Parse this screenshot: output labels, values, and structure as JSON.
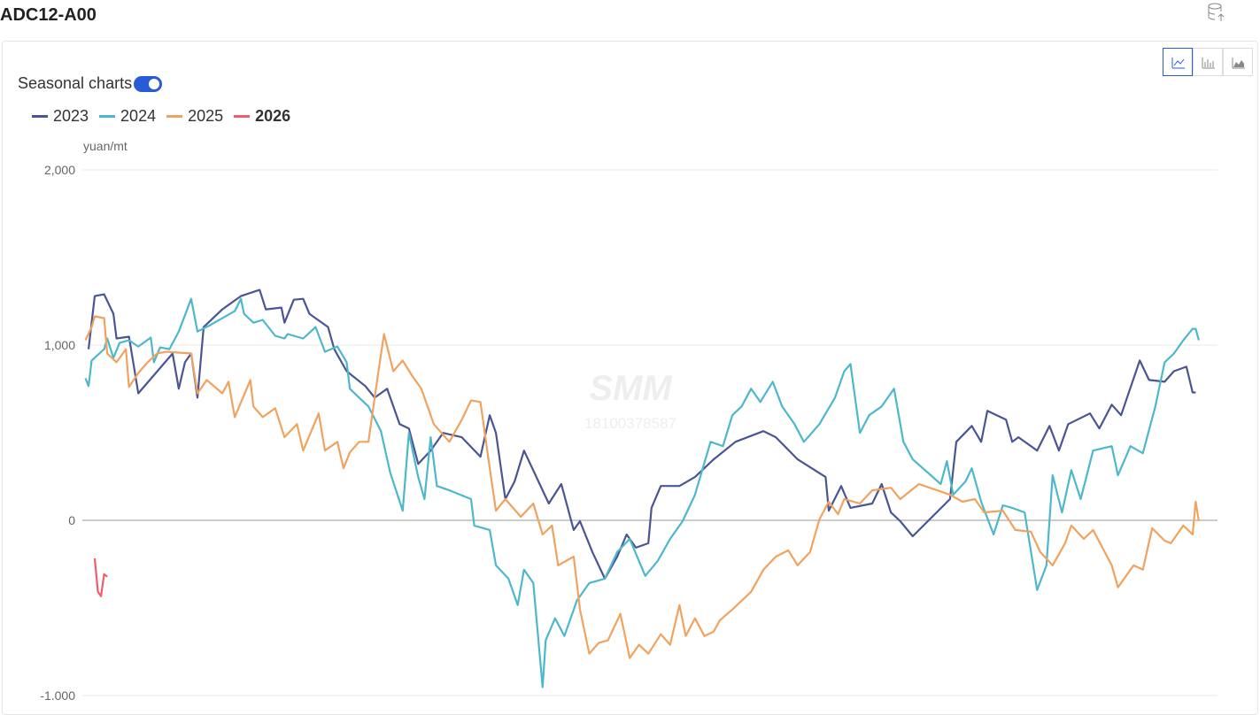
{
  "header": {
    "title": "ADC12-A00"
  },
  "controls": {
    "seasonal_toggle": "Seasonal charts"
  },
  "watermark": {
    "brand": "SMM",
    "phone": "18100378587"
  },
  "chart_data": {
    "type": "line",
    "y_axis_label": "yuan/mt",
    "xlim": [
      1,
      366
    ],
    "ylim": [
      -1000,
      2000
    ],
    "yticks": [
      {
        "value": -1000,
        "label": "-1,000"
      },
      0,
      {
        "value": 1000,
        "label": "1,000"
      },
      {
        "value": 2000,
        "label": "2,000"
      }
    ],
    "grid": true,
    "legend": "top-left",
    "series": [
      {
        "name": "2023",
        "color": "#4b5594",
        "x": [
          3,
          5,
          8,
          11,
          12,
          16,
          19,
          30,
          32,
          34,
          36,
          38,
          40,
          46,
          52,
          58,
          60,
          65,
          66,
          69,
          72,
          74,
          80,
          82,
          86,
          92,
          95,
          99,
          103,
          106,
          109,
          113,
          117,
          123,
          129,
          132,
          134,
          137,
          140,
          143,
          147,
          151,
          155,
          159,
          161,
          165,
          169,
          173,
          176,
          179,
          183,
          184,
          187,
          193,
          198,
          204,
          211,
          220,
          224,
          231,
          240,
          241,
          245,
          248,
          255,
          258,
          261,
          264,
          268,
          280,
          282,
          287,
          290,
          292,
          298,
          300,
          302,
          308,
          312,
          315,
          318,
          325,
          328,
          332,
          335,
          341,
          344,
          349,
          352,
          356,
          358,
          359
        ],
        "values": [
          977,
          1280,
          1290,
          1179,
          1038,
          1048,
          725,
          952,
          751,
          902,
          952,
          700,
          1103,
          1204,
          1280,
          1315,
          1204,
          1214,
          1128,
          1259,
          1264,
          1179,
          1103,
          977,
          851,
          766,
          700,
          751,
          549,
          524,
          322,
          398,
          499,
          474,
          363,
          600,
          499,
          121,
          222,
          398,
          247,
          96,
          207,
          -55,
          -5,
          -181,
          -333,
          -207,
          -81,
          -156,
          -131,
          71,
          196,
          196,
          247,
          348,
          448,
          509,
          474,
          348,
          247,
          55,
          196,
          71,
          96,
          207,
          45,
          -5,
          -91,
          121,
          448,
          539,
          448,
          625,
          574,
          448,
          474,
          398,
          539,
          398,
          549,
          610,
          524,
          660,
          600,
          912,
          801,
          791,
          851,
          877,
          730,
          730
        ]
      },
      {
        "name": "2024",
        "color": "#4db8cc",
        "x": [
          2,
          3,
          4,
          8,
          9,
          11,
          13,
          16,
          19,
          23,
          24,
          26,
          29,
          32,
          36,
          38,
          42,
          50,
          52,
          53,
          56,
          59,
          63,
          66,
          67,
          72,
          76,
          79,
          83,
          86,
          87,
          90,
          93,
          97,
          100,
          104,
          106,
          109,
          111,
          113,
          115,
          119,
          126,
          127,
          132,
          134,
          138,
          141,
          143,
          146,
          149,
          150,
          153,
          156,
          160,
          164,
          169,
          173,
          177,
          182,
          186,
          190,
          194,
          198,
          203,
          207,
          210,
          213,
          216,
          219,
          223,
          226,
          230,
          233,
          238,
          243,
          246,
          248,
          251,
          254,
          258,
          262,
          265,
          268,
          277,
          279,
          281,
          285,
          287,
          290,
          294,
          297,
          300,
          304,
          308,
          311,
          313,
          316,
          319,
          322,
          326,
          332,
          334,
          338,
          342,
          346,
          349,
          352,
          355,
          358,
          359,
          360
        ],
        "values": [
          811,
          766,
          912,
          977,
          1038,
          927,
          1013,
          1028,
          992,
          1043,
          902,
          987,
          977,
          1078,
          1264,
          1078,
          1113,
          1194,
          1264,
          1179,
          1128,
          1144,
          1053,
          1038,
          1063,
          1038,
          1103,
          962,
          992,
          902,
          751,
          700,
          650,
          509,
          272,
          55,
          499,
          247,
          121,
          474,
          196,
          171,
          121,
          -30,
          -55,
          -257,
          -333,
          -484,
          -282,
          -358,
          -952,
          -685,
          -559,
          -660,
          -458,
          -358,
          -333,
          -181,
          -106,
          -317,
          -232,
          -106,
          -5,
          146,
          448,
          423,
          600,
          650,
          751,
          675,
          791,
          650,
          549,
          448,
          549,
          700,
          851,
          892,
          499,
          600,
          650,
          751,
          448,
          348,
          207,
          338,
          146,
          222,
          297,
          106,
          -81,
          86,
          71,
          45,
          -398,
          -257,
          257,
          45,
          287,
          121,
          398,
          423,
          257,
          423,
          383,
          650,
          902,
          952,
          1028,
          1093,
          1093,
          1028
        ]
      },
      {
        "name": "2025",
        "color": "#f0a35e",
        "x": [
          2,
          4,
          5,
          8,
          9,
          12,
          15,
          16,
          19,
          22,
          25,
          28,
          36,
          38,
          41,
          46,
          48,
          50,
          55,
          56,
          59,
          63,
          66,
          70,
          72,
          77,
          79,
          83,
          85,
          87,
          90,
          93,
          96,
          98,
          101,
          104,
          107,
          110,
          114,
          119,
          123,
          126,
          129,
          132,
          134,
          137,
          142,
          146,
          149,
          152,
          154,
          159,
          161,
          164,
          167,
          170,
          174,
          177,
          180,
          183,
          187,
          190,
          193,
          195,
          198,
          201,
          204,
          206,
          210,
          216,
          220,
          224,
          228,
          231,
          235,
          238,
          241,
          244,
          246,
          251,
          255,
          261,
          264,
          270,
          280,
          284,
          288,
          291,
          297,
          301,
          306,
          309,
          313,
          317,
          319,
          323,
          326,
          332,
          334,
          339,
          342,
          345,
          349,
          351,
          355,
          358,
          359,
          360
        ],
        "values": [
          1028,
          1103,
          1164,
          1154,
          952,
          902,
          977,
          761,
          841,
          902,
          952,
          962,
          952,
          725,
          801,
          725,
          791,
          589,
          801,
          650,
          589,
          640,
          474,
          549,
          398,
          610,
          398,
          448,
          297,
          388,
          448,
          448,
          826,
          1063,
          851,
          912,
          826,
          751,
          549,
          448,
          574,
          685,
          675,
          297,
          55,
          121,
          20,
          96,
          -81,
          -30,
          -257,
          -207,
          -509,
          -761,
          -700,
          -685,
          -534,
          -786,
          -710,
          -761,
          -650,
          -710,
          -484,
          -660,
          -559,
          -660,
          -635,
          -570,
          -509,
          -408,
          -282,
          -207,
          -171,
          -257,
          -181,
          5,
          106,
          35,
          121,
          96,
          171,
          186,
          121,
          207,
          146,
          106,
          121,
          45,
          55,
          -55,
          -65,
          -181,
          -257,
          -131,
          -30,
          -106,
          -55,
          -257,
          -383,
          -257,
          -282,
          -45,
          -116,
          -131,
          -30,
          -81,
          106,
          -5
        ]
      },
      {
        "name": "2026",
        "color": "#ef5e6b",
        "x": [
          5,
          6,
          7,
          8,
          9
        ],
        "values": [
          -217,
          -408,
          -433,
          -307,
          -322
        ]
      }
    ]
  }
}
